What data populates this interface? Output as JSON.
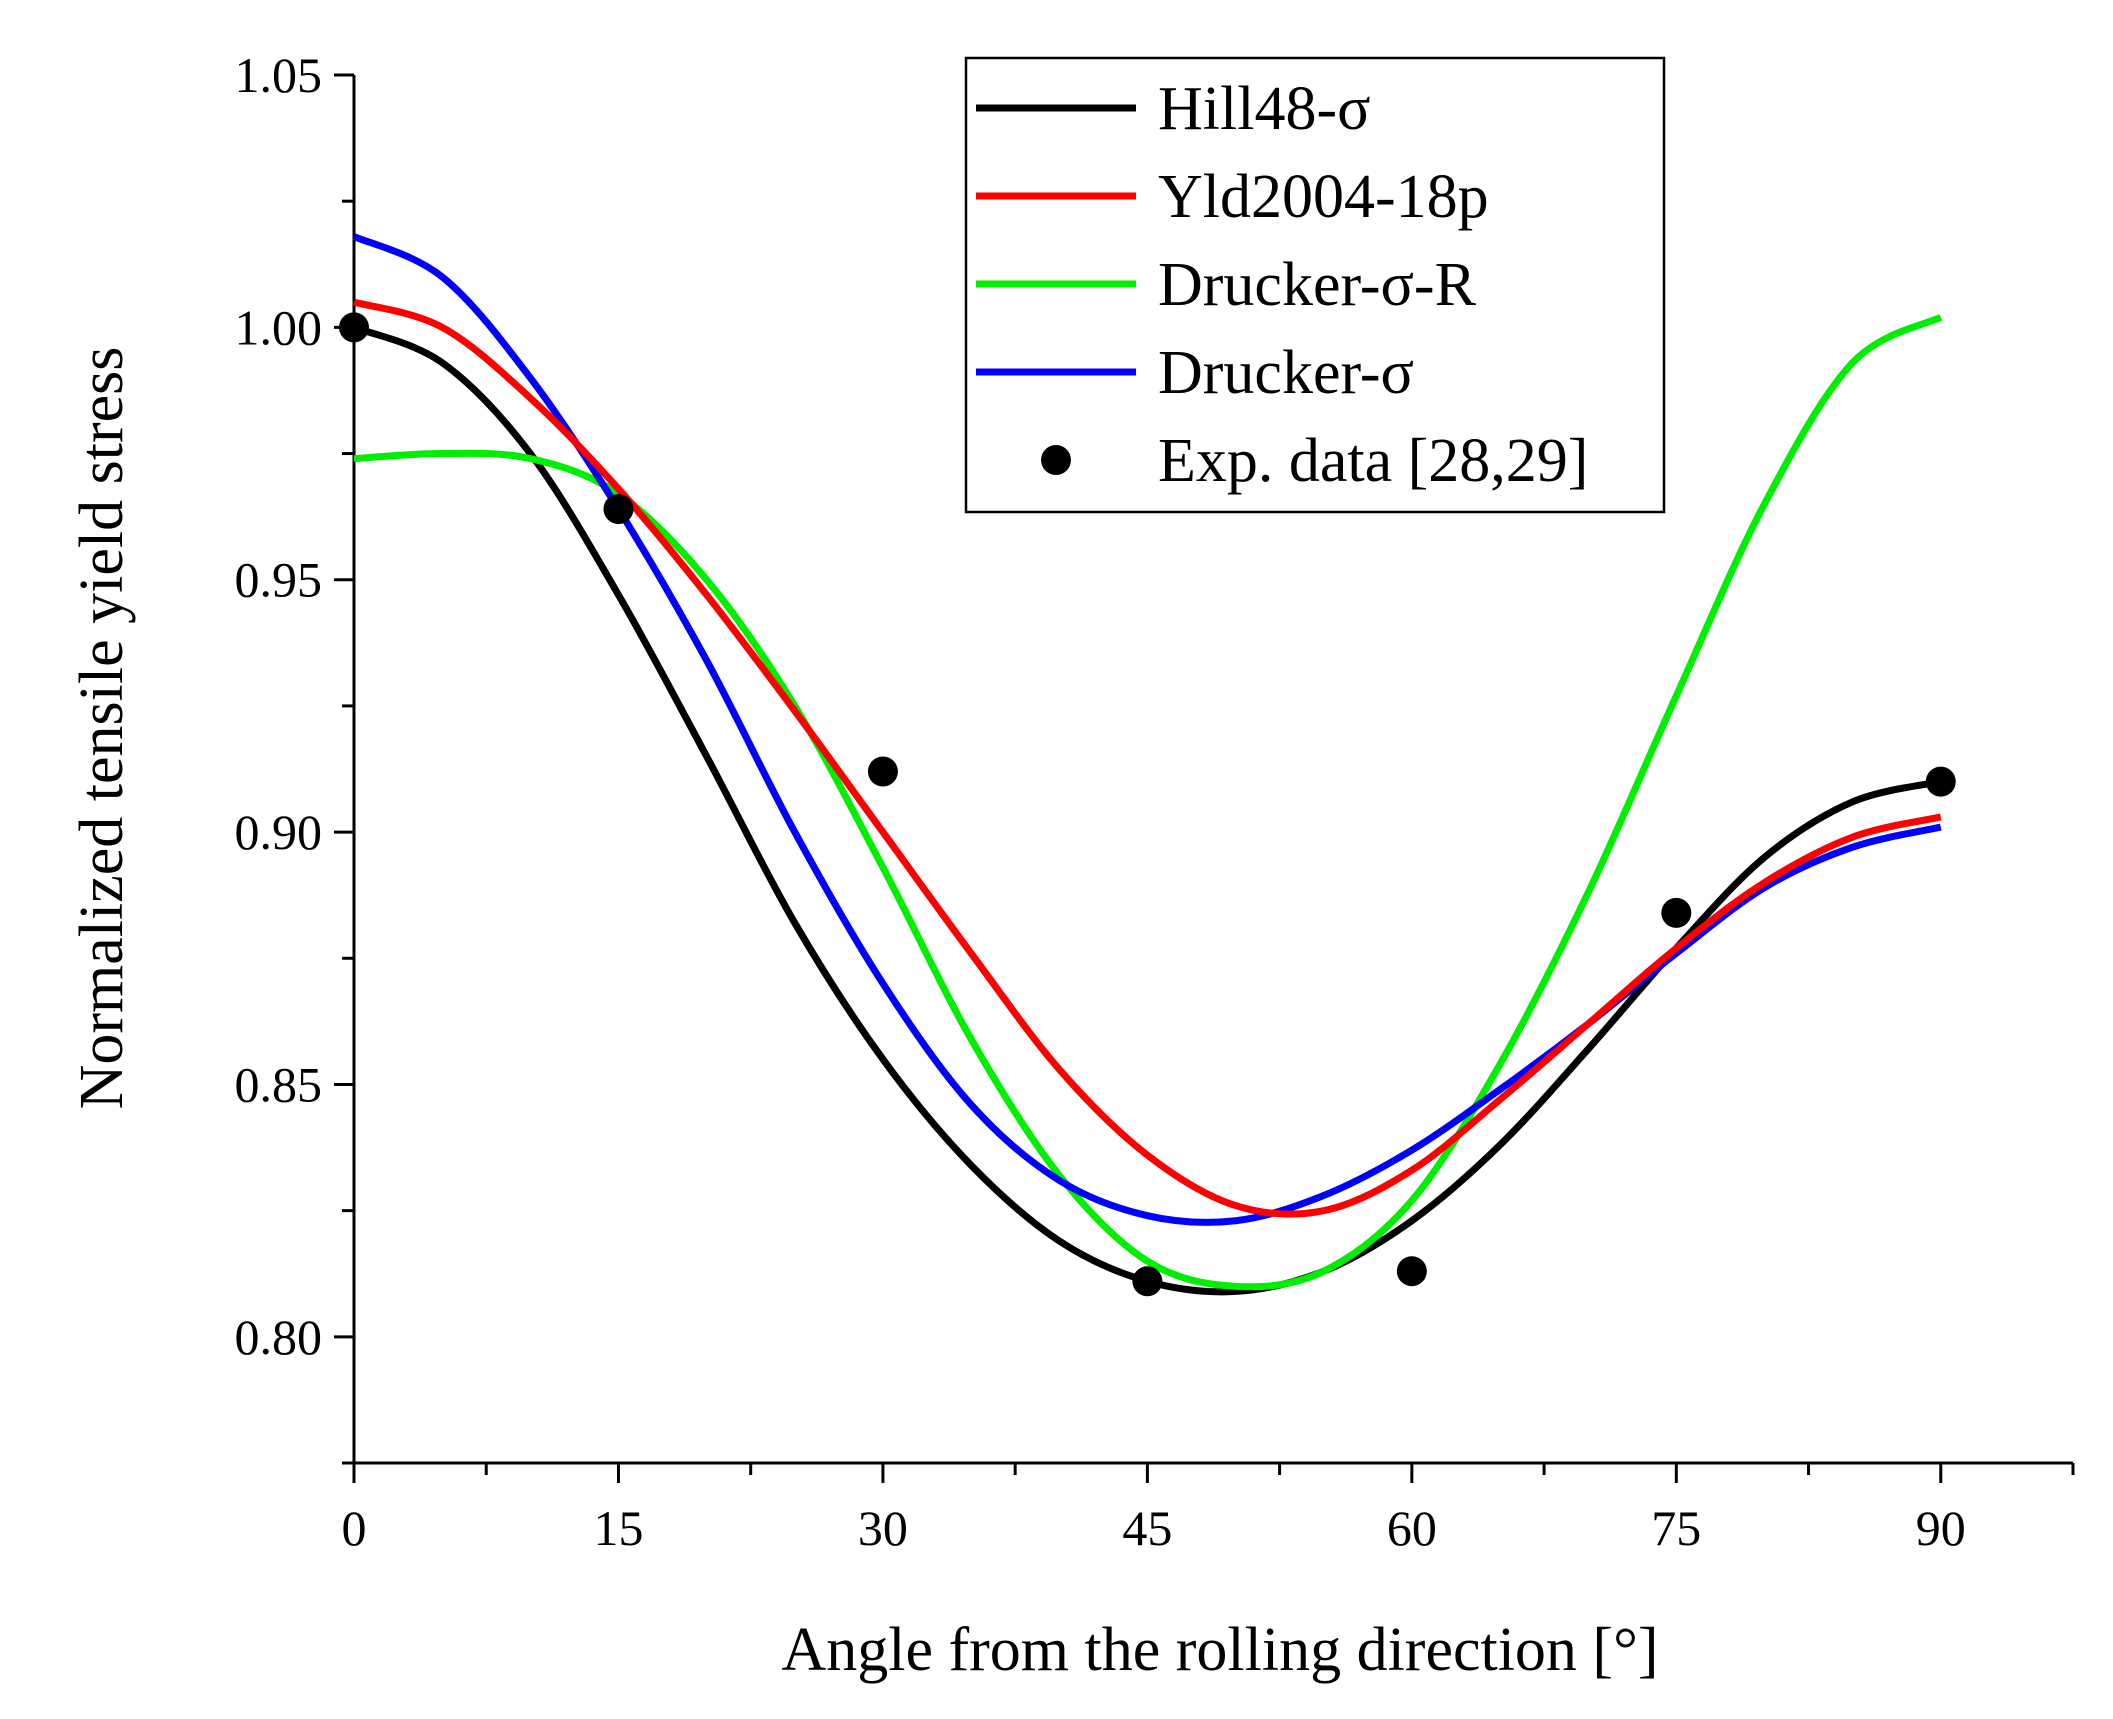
{
  "chart_data": {
    "type": "line",
    "title": "",
    "xlabel": "Angle from the rolling direction [°]",
    "ylabel": "Normalized tensile yield stress",
    "xlim": [
      0,
      97.5
    ],
    "ylim": [
      0.775,
      1.05
    ],
    "xticks": [
      0,
      15,
      30,
      45,
      60,
      75,
      90
    ],
    "xtick_labels": [
      "0",
      "15",
      "30",
      "45",
      "60",
      "75",
      "90"
    ],
    "yticks": [
      0.8,
      0.85,
      0.9,
      0.95,
      1.0,
      1.05
    ],
    "ytick_labels": [
      "0.80",
      "0.85",
      "0.90",
      "0.95",
      "1.00",
      "1.05"
    ],
    "legend_position": "top-right",
    "series": [
      {
        "name": "Hill48-σ",
        "color": "#000000",
        "x": [
          0,
          5,
          10,
          15,
          20,
          25,
          30,
          35,
          40,
          45,
          50,
          55,
          60,
          65,
          70,
          75,
          80,
          85,
          90
        ],
        "y": [
          1.0,
          0.993,
          0.975,
          0.947,
          0.915,
          0.882,
          0.855,
          0.834,
          0.819,
          0.811,
          0.809,
          0.813,
          0.823,
          0.838,
          0.857,
          0.877,
          0.895,
          0.906,
          0.91
        ]
      },
      {
        "name": "Yld2004-18p",
        "color": "#ff0000",
        "x": [
          0,
          5,
          10,
          15,
          20,
          25,
          30,
          35,
          40,
          45,
          50,
          55,
          60,
          65,
          70,
          75,
          80,
          85,
          90
        ],
        "y": [
          1.005,
          1.0,
          0.986,
          0.968,
          0.947,
          0.924,
          0.9,
          0.876,
          0.853,
          0.836,
          0.826,
          0.825,
          0.833,
          0.847,
          0.862,
          0.877,
          0.89,
          0.899,
          0.903
        ]
      },
      {
        "name": "Drucker-σ-R",
        "color": "#00ee00",
        "x": [
          0,
          5,
          10,
          15,
          20,
          25,
          30,
          35,
          40,
          45,
          50,
          55,
          60,
          65,
          70,
          75,
          80,
          85,
          90
        ],
        "y": [
          0.974,
          0.975,
          0.974,
          0.967,
          0.95,
          0.925,
          0.893,
          0.859,
          0.832,
          0.815,
          0.81,
          0.813,
          0.827,
          0.854,
          0.888,
          0.927,
          0.965,
          0.993,
          1.002
        ]
      },
      {
        "name": "Drucker-σ",
        "color": "#0000ff",
        "x": [
          0,
          5,
          10,
          15,
          20,
          25,
          30,
          35,
          40,
          45,
          50,
          55,
          60,
          65,
          70,
          75,
          80,
          85,
          90
        ],
        "y": [
          1.018,
          1.01,
          0.99,
          0.964,
          0.934,
          0.9,
          0.87,
          0.846,
          0.831,
          0.824,
          0.823,
          0.828,
          0.837,
          0.849,
          0.862,
          0.876,
          0.889,
          0.897,
          0.901
        ]
      }
    ],
    "scatter": {
      "name": "Exp. data [28,29]",
      "color": "#000000",
      "x": [
        0,
        15,
        30,
        45,
        60,
        75,
        90
      ],
      "y": [
        1.0,
        0.964,
        0.912,
        0.811,
        0.813,
        0.884,
        0.91
      ]
    }
  }
}
